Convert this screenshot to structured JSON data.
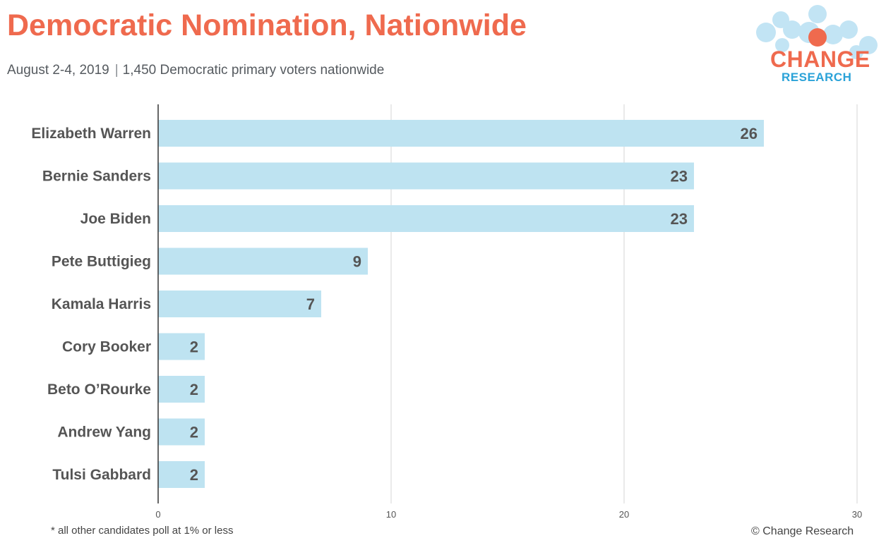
{
  "header": {
    "title": "Democratic Nomination, Nationwide",
    "subtitle_date": "August 2-4, 2019",
    "subtitle_sample": "1,450 Democratic primary voters nationwide"
  },
  "logo": {
    "word_top": "CHANGE",
    "word_bottom": "RESEARCH",
    "colors": {
      "orange": "#ef6a4e",
      "blue": "#2aa2d8",
      "bubble": "#b8e0f3"
    }
  },
  "chart_data": {
    "type": "bar",
    "orientation": "horizontal",
    "categories": [
      "Elizabeth Warren",
      "Bernie Sanders",
      "Joe Biden",
      "Pete Buttigieg",
      "Kamala Harris",
      "Cory Booker",
      "Beto O’Rourke",
      "Andrew Yang",
      "Tulsi Gabbard"
    ],
    "values": [
      26,
      23,
      23,
      9,
      7,
      2,
      2,
      2,
      2
    ],
    "xlim": [
      0,
      30
    ],
    "xticks": [
      "0",
      "10",
      "20",
      "30"
    ],
    "grid": true,
    "bar_color": "#bee3f1",
    "label_color": "#555555"
  },
  "footer": {
    "footnote": "* all other candidates poll at 1% or less",
    "copyright": "© Change Research"
  }
}
